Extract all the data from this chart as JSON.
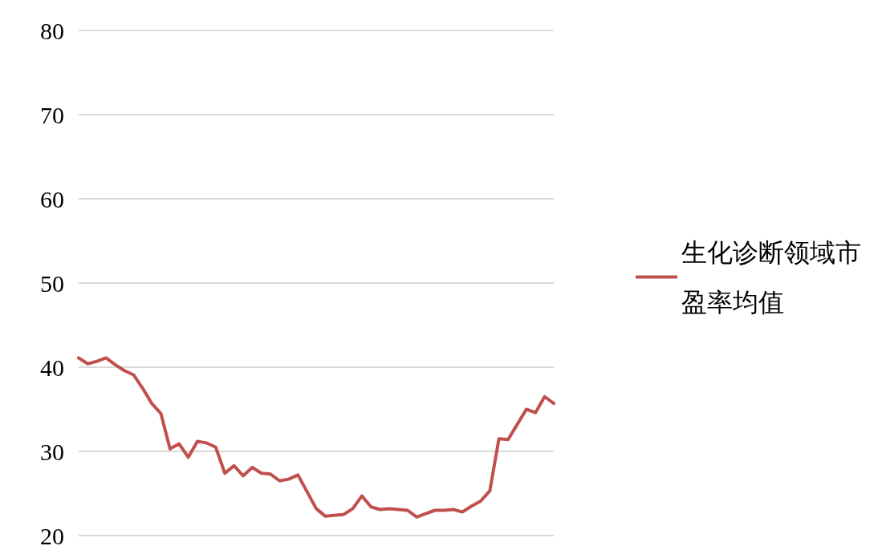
{
  "chart_data": {
    "type": "line",
    "categories": [
      null,
      null,
      null,
      null,
      null,
      null,
      null,
      null,
      null,
      null,
      null,
      null,
      null,
      null,
      null,
      null,
      null,
      null,
      null,
      null,
      null,
      null,
      null,
      null,
      null,
      null,
      null,
      null,
      null,
      null,
      null,
      null,
      null,
      null,
      null,
      null,
      null,
      null,
      null,
      null,
      null,
      null,
      null,
      null,
      null,
      null,
      null,
      null,
      null,
      null,
      null,
      null,
      null
    ],
    "series": [
      {
        "name": "生化诊断领域市盈率均值",
        "color": "#c0504d",
        "values": [
          41.1,
          40.4,
          40.7,
          41.1,
          40.3,
          39.6,
          39.1,
          37.5,
          35.7,
          34.5,
          30.3,
          30.9,
          29.3,
          31.2,
          31.0,
          30.5,
          27.4,
          28.3,
          27.1,
          28.1,
          27.4,
          27.3,
          26.5,
          26.7,
          27.2,
          25.2,
          23.2,
          22.3,
          22.4,
          22.5,
          23.2,
          24.7,
          23.4,
          23.1,
          23.2,
          23.1,
          23.0,
          22.2,
          22.6,
          23.0,
          23.0,
          23.1,
          22.8,
          23.5,
          24.1,
          25.3,
          31.5,
          31.4,
          33.2,
          35.0,
          34.6,
          36.5,
          35.7
        ]
      }
    ],
    "ylim": [
      20,
      80
    ],
    "yticks": [
      20,
      30,
      40,
      50,
      60,
      70,
      80
    ],
    "grid": "y",
    "legend": "right",
    "marker": "none",
    "line_style": "solid"
  }
}
